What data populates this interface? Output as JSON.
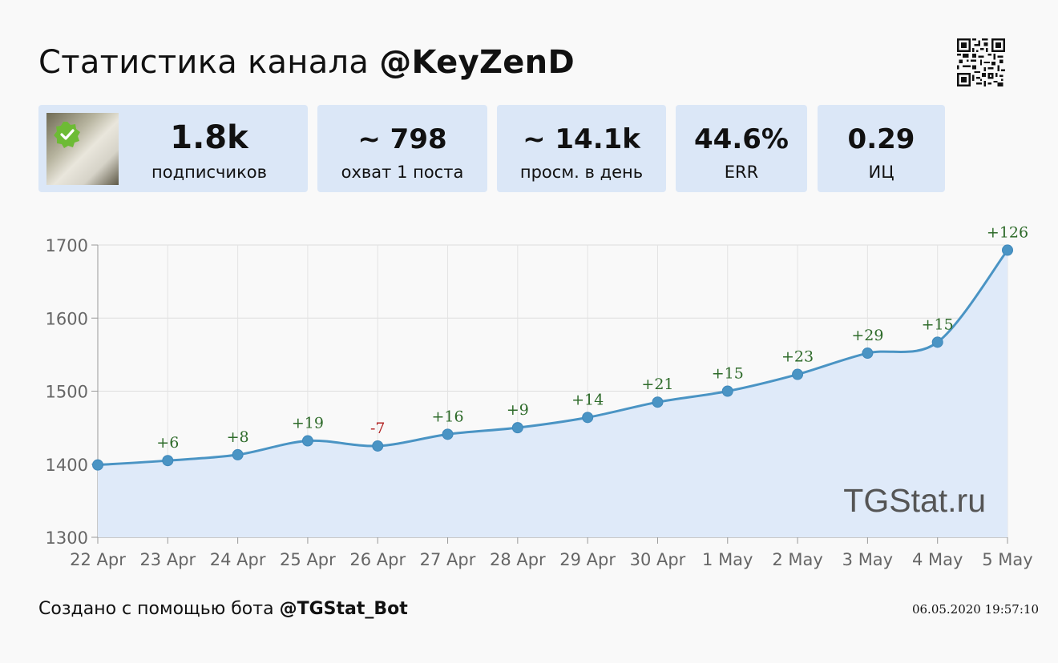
{
  "header": {
    "title_prefix": "Статистика канала",
    "channel": "@KeyZenD"
  },
  "stats": [
    {
      "value": "1.8k",
      "label": "подписчиков"
    },
    {
      "value": "~ 798",
      "label": "охват 1 поста"
    },
    {
      "value": "~ 14.1k",
      "label": "просм. в день"
    },
    {
      "value": "44.6%",
      "label": "ERR"
    },
    {
      "value": "0.29",
      "label": "ИЦ"
    }
  ],
  "icons": {
    "avatar": "verified-check-icon",
    "qr": "qr-code-icon"
  },
  "colors": {
    "card_bg": "#dbe7f7",
    "line": "#4a94c4",
    "area": "#dfeaf9",
    "positive": "#2e6b2a",
    "negative": "#b22222"
  },
  "chart_data": {
    "type": "area",
    "categories": [
      "22 Apr",
      "23 Apr",
      "24 Apr",
      "25 Apr",
      "26 Apr",
      "27 Apr",
      "28 Apr",
      "29 Apr",
      "30 Apr",
      "1 May",
      "2 May",
      "3 May",
      "4 May",
      "5 May"
    ],
    "values": [
      1399,
      1405,
      1413,
      1432,
      1425,
      1441,
      1450,
      1464,
      1485,
      1500,
      1523,
      1552,
      1567,
      1693
    ],
    "annotations": [
      "",
      "+6",
      "+8",
      "+19",
      "-7",
      "+16",
      "+9",
      "+14",
      "+21",
      "+15",
      "+23",
      "+29",
      "+15",
      "+126"
    ],
    "yticks": [
      1300,
      1400,
      1500,
      1600,
      1700
    ],
    "ylim": [
      1300,
      1700
    ],
    "grid": true,
    "watermark": "TGStat.ru"
  },
  "footer": {
    "prefix": "Создано с помощью бота",
    "bot": "@TGStat_Bot",
    "timestamp": "06.05.2020 19:57:10"
  }
}
